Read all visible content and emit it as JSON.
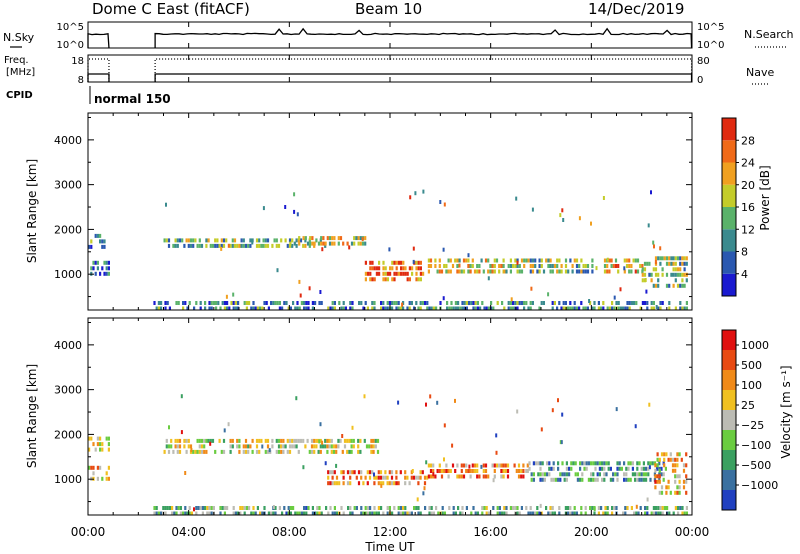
{
  "header": {
    "station": "Dome C East (fitACF)",
    "beam": "Beam 10",
    "date": "14/Dec/2019"
  },
  "chart_data": [
    {
      "type": "line",
      "panel": "noise",
      "left_label": "N.Sky",
      "left_ticks": [
        "10^5",
        "10^0"
      ],
      "right_label": "N.Search",
      "right_ticks": [
        "10^5",
        "10^0"
      ],
      "series": [
        {
          "line": "solid",
          "segments": [
            [
              "00:00",
              "00:50"
            ],
            [
              "02:40",
              "23:59"
            ]
          ]
        },
        {
          "line": "dotted",
          "legend_only": true
        }
      ]
    },
    {
      "type": "line",
      "panel": "frequency",
      "left_label_line1": "Freq.",
      "left_label_line2": "[MHz]",
      "left_ticks": [
        18,
        8
      ],
      "right_label": "Nave",
      "right_ticks": [
        80,
        0
      ],
      "series": [
        {
          "line": "solid",
          "segments": [
            [
              "00:00",
              "00:50"
            ],
            [
              "02:40",
              "23:59"
            ]
          ]
        },
        {
          "line": "dotted",
          "segments": [
            [
              "00:00",
              "00:50"
            ],
            [
              "02:40",
              "23:59"
            ]
          ]
        }
      ]
    },
    {
      "type": "text",
      "panel": "cpid",
      "label": "CPID",
      "value": "normal 150"
    },
    {
      "type": "heatmap",
      "panel": "power",
      "ylabel": "Slant Range [km]",
      "yticks": [
        1000,
        2000,
        3000,
        4000
      ],
      "ylim": [
        200,
        4600
      ],
      "colorbar_label": "Power [dB]",
      "colorbar_ticks": [
        4,
        8,
        12,
        16,
        20,
        24,
        28
      ],
      "colorbar_range": [
        0,
        32
      ],
      "colors": [
        "#1a1ad0",
        "#2a58b0",
        "#3a8a8e",
        "#5ab26a",
        "#c4cc2a",
        "#f0a020",
        "#f06a18",
        "#e02a10"
      ],
      "echo_bands": [
        {
          "t0": 0.0,
          "t1": 0.8,
          "r0": 1650,
          "r1": 1900,
          "level": 0.35
        },
        {
          "t0": 0.0,
          "t1": 0.8,
          "r0": 1000,
          "r1": 1300,
          "level": 0.25
        },
        {
          "t0": 3.0,
          "t1": 9.5,
          "r0": 1600,
          "r1": 1800,
          "level": 0.4
        },
        {
          "t0": 8.0,
          "t1": 11.0,
          "r0": 1650,
          "r1": 1850,
          "level": 0.55
        },
        {
          "t0": 11.0,
          "t1": 13.5,
          "r0": 900,
          "r1": 1300,
          "level": 0.85
        },
        {
          "t0": 13.5,
          "t1": 16.5,
          "r0": 1000,
          "r1": 1350,
          "level": 0.6
        },
        {
          "t0": 16.5,
          "t1": 20.0,
          "r0": 1000,
          "r1": 1350,
          "level": 0.45
        },
        {
          "t0": 20.5,
          "t1": 22.0,
          "r0": 1050,
          "r1": 1350,
          "level": 0.65
        },
        {
          "t0": 22.0,
          "t1": 23.8,
          "r0": 700,
          "r1": 1400,
          "level": 0.45
        },
        {
          "t0": 2.6,
          "t1": 23.8,
          "r0": 250,
          "r1": 400,
          "level": 0.3
        }
      ],
      "xticks": [
        "00:00",
        "04:00",
        "08:00",
        "12:00",
        "16:00",
        "20:00",
        "00:00"
      ]
    },
    {
      "type": "heatmap",
      "panel": "velocity",
      "ylabel": "Slant Range [km]",
      "yticks": [
        1000,
        2000,
        3000,
        4000
      ],
      "ylim": [
        200,
        4600
      ],
      "colorbar_label": "Velocity [m s⁻¹]",
      "colorbar_ticks": [
        "1000",
        "500",
        "100",
        "25",
        "−25",
        "−100",
        "−500",
        "−1000"
      ],
      "colors": [
        "#2040c0",
        "#3a70a0",
        "#3aa060",
        "#6acc40",
        "#bcbcb4",
        "#f0c020",
        "#f08a18",
        "#e84a12",
        "#e01010"
      ],
      "echo_bands": [
        {
          "t0": 0.0,
          "t1": 0.8,
          "r0": 1650,
          "r1": 1950,
          "level": 0.5
        },
        {
          "t0": 0.0,
          "t1": 0.8,
          "r0": 1000,
          "r1": 1300,
          "level": 0.6
        },
        {
          "t0": 3.0,
          "t1": 11.5,
          "r0": 1600,
          "r1": 1900,
          "level": 0.5
        },
        {
          "t0": 9.5,
          "t1": 13.5,
          "r0": 900,
          "r1": 1200,
          "level": 0.75
        },
        {
          "t0": 13.5,
          "t1": 17.5,
          "r0": 1050,
          "r1": 1350,
          "level": 0.72
        },
        {
          "t0": 17.5,
          "t1": 23.0,
          "r0": 1000,
          "r1": 1400,
          "level": 0.3
        },
        {
          "t0": 22.5,
          "t1": 23.8,
          "r0": 700,
          "r1": 1600,
          "level": 0.65
        },
        {
          "t0": 2.6,
          "t1": 23.8,
          "r0": 250,
          "r1": 400,
          "level": 0.35
        }
      ],
      "xticks": [
        "00:00",
        "04:00",
        "08:00",
        "12:00",
        "16:00",
        "20:00",
        "00:00"
      ],
      "xlabel": "Time UT"
    }
  ]
}
